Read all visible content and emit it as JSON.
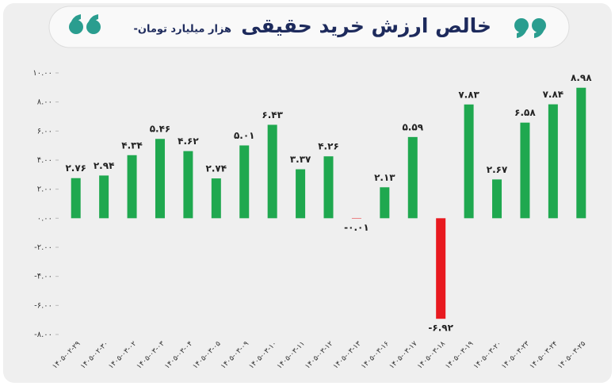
{
  "chart_data": {
    "type": "bar",
    "title": "خالص ارزش خرید حقیقی",
    "subtitle": "-هزار میلیارد تومان",
    "categories": [
      "۱۴۰۵-۰۲-۲۹",
      "۱۴۰۵-۰۲-۳۰",
      "۱۴۰۵-۰۳-۰۲",
      "۱۴۰۵-۰۳-۰۳",
      "۱۴۰۵-۰۳-۰۴",
      "۱۴۰۵-۰۳-۰۵",
      "۱۴۰۵-۰۳-۰۹",
      "۱۴۰۵-۰۳-۱۰",
      "۱۴۰۵-۰۳-۱۱",
      "۱۴۰۵-۰۳-۱۲",
      "۱۴۰۵-۰۳-۱۳",
      "۱۴۰۵-۰۳-۱۶",
      "۱۴۰۵-۰۳-۱۷",
      "۱۴۰۵-۰۳-۱۸",
      "۱۴۰۵-۰۳-۱۹",
      "۱۴۰۵-۰۳-۲۰",
      "۱۴۰۵-۰۳-۲۳",
      "۱۴۰۵-۰۳-۲۴",
      "۱۴۰۵-۰۳-۲۵"
    ],
    "values": [
      2.76,
      2.94,
      4.34,
      5.46,
      4.62,
      2.74,
      5.01,
      6.43,
      3.37,
      4.26,
      -0.01,
      2.13,
      5.59,
      -6.92,
      7.83,
      2.67,
      6.58,
      7.84,
      8.98
    ],
    "value_labels": [
      "۲.۷۶",
      "۲.۹۴",
      "۴.۳۴",
      "۵.۴۶",
      "۴.۶۲",
      "۲.۷۴",
      "۵.۰۱",
      "۶.۴۳",
      "۳.۳۷",
      "۴.۲۶",
      "-۰.۰۱",
      "۲.۱۳",
      "۵.۵۹",
      "-۶.۹۲",
      "۷.۸۳",
      "۲.۶۷",
      "۶.۵۸",
      "۷.۸۴",
      "۸.۹۸"
    ],
    "color": "#1fa84f",
    "negative_color": "#e8191f",
    "ylim": [
      -8,
      10
    ],
    "yticks": [
      {
        "value": -8,
        "label": "-۸.۰۰"
      },
      {
        "value": -6,
        "label": "-۶.۰۰"
      },
      {
        "value": -4,
        "label": "-۴.۰۰"
      },
      {
        "value": -2,
        "label": "-۲.۰۰"
      },
      {
        "value": 0,
        "label": "۰.۰۰"
      },
      {
        "value": 2,
        "label": "۲.۰۰"
      },
      {
        "value": 4,
        "label": "۴.۰۰"
      },
      {
        "value": 6,
        "label": "۶.۰۰"
      },
      {
        "value": 8,
        "label": "۸.۰۰"
      },
      {
        "value": 10,
        "label": "۱۰.۰۰"
      }
    ],
    "grid": false
  }
}
